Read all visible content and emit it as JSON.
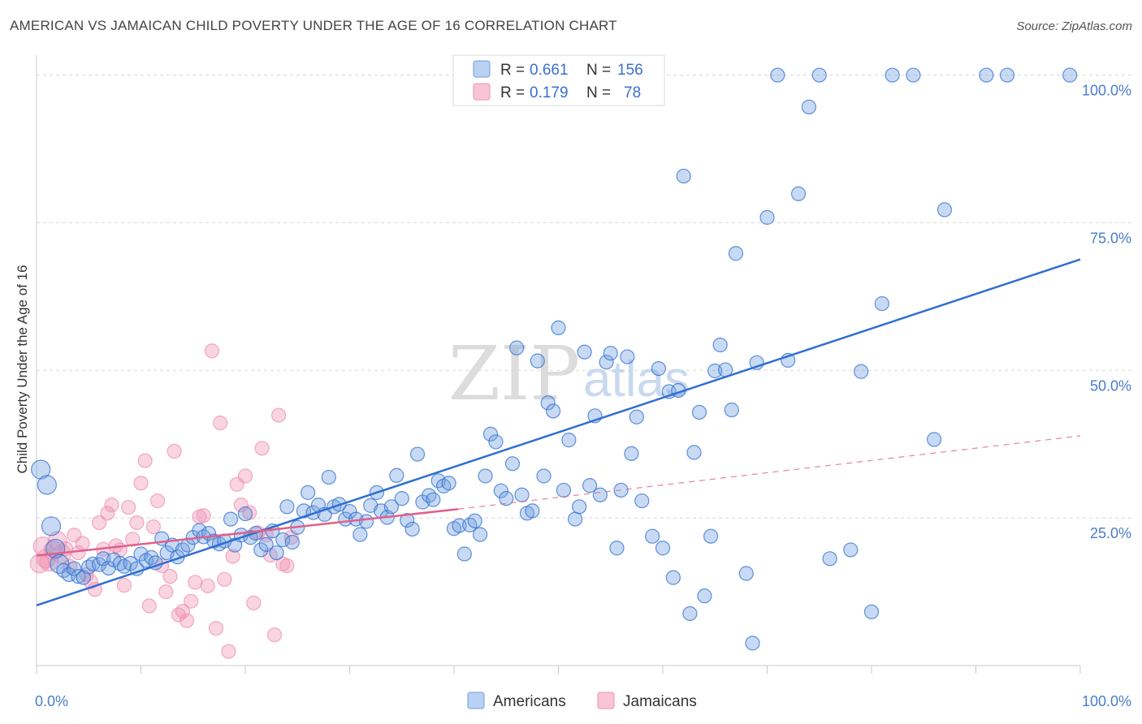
{
  "title": "AMERICAN VS JAMAICAN CHILD POVERTY UNDER THE AGE OF 16 CORRELATION CHART",
  "source": "Source: ZipAtlas.com",
  "watermark": {
    "zip": "ZIP",
    "atlas": "atlas"
  },
  "colors": {
    "americans": "#6f9fe0",
    "americans_line": "#2f6fd0",
    "jamaicans": "#f08fb0",
    "jamaicans_line": "#e0608a",
    "grid": "#d8d8d8",
    "tick_text": "#4a7cc9"
  },
  "chart_data": {
    "type": "scatter",
    "title": "AMERICAN VS JAMAICAN CHILD POVERTY UNDER THE AGE OF 16 CORRELATION CHART",
    "xlabel": "",
    "ylabel": "Child Poverty Under the Age of 16",
    "xlim": [
      0,
      100
    ],
    "ylim": [
      0,
      102
    ],
    "x_tick_labels": [
      "0.0%",
      "100.0%"
    ],
    "y_ticks": [
      25,
      50,
      75,
      100
    ],
    "y_tick_labels": [
      "25.0%",
      "50.0%",
      "75.0%",
      "100.0%"
    ],
    "grid": true,
    "legend_position": "top-center",
    "legend": [
      {
        "name": "Americans",
        "r_label": "R =",
        "r": "0.661",
        "n_label": "N =",
        "n": "156"
      },
      {
        "name": "Jamaicans",
        "r_label": "R =",
        "r": "0.179",
        "n_label": "N =",
        "n": "78"
      }
    ],
    "series": [
      {
        "name": "Americans",
        "trend": {
          "x0": 0,
          "y0": 10.2,
          "x1": 100,
          "y1": 68.8
        },
        "points": [
          [
            0.4,
            33.2
          ],
          [
            1,
            30.6
          ],
          [
            1.4,
            23.6
          ],
          [
            1.8,
            19.8
          ],
          [
            2.2,
            17.2
          ],
          [
            2.6,
            16.1
          ],
          [
            3.1,
            15.4
          ],
          [
            3.6,
            16.4
          ],
          [
            4,
            15.1
          ],
          [
            4.5,
            14.9
          ],
          [
            5,
            16.7
          ],
          [
            5.4,
            17.2
          ],
          [
            6,
            17.1
          ],
          [
            6.4,
            18.1
          ],
          [
            6.9,
            16.5
          ],
          [
            7.4,
            17.9
          ],
          [
            8,
            17.3
          ],
          [
            8.4,
            16.8
          ],
          [
            9,
            17.3
          ],
          [
            9.6,
            16.4
          ],
          [
            10,
            18.9
          ],
          [
            10.5,
            17.8
          ],
          [
            11,
            18.3
          ],
          [
            11.4,
            17.4
          ],
          [
            12,
            21.5
          ],
          [
            12.5,
            19.1
          ],
          [
            13,
            20.4
          ],
          [
            13.5,
            18.4
          ],
          [
            14,
            19.6
          ],
          [
            14.5,
            20.4
          ],
          [
            15,
            21.7
          ],
          [
            15.6,
            22.9
          ],
          [
            16,
            21.8
          ],
          [
            16.5,
            22.4
          ],
          [
            17,
            21.1
          ],
          [
            17.5,
            20.6
          ],
          [
            18,
            21.1
          ],
          [
            18.6,
            24.8
          ],
          [
            19,
            20.4
          ],
          [
            19.6,
            22.1
          ],
          [
            20,
            25.7
          ],
          [
            20.5,
            21.7
          ],
          [
            21,
            22.4
          ],
          [
            21.5,
            19.6
          ],
          [
            22,
            20.5
          ],
          [
            22.6,
            22.8
          ],
          [
            23,
            19.1
          ],
          [
            23.6,
            21.3
          ],
          [
            24,
            26.9
          ],
          [
            24.5,
            20.9
          ],
          [
            25,
            23.4
          ],
          [
            25.6,
            26.2
          ],
          [
            26,
            29.3
          ],
          [
            26.5,
            25.9
          ],
          [
            27,
            27.2
          ],
          [
            27.6,
            25.6
          ],
          [
            28,
            31.9
          ],
          [
            28.5,
            26.9
          ],
          [
            29,
            27.3
          ],
          [
            29.6,
            24.8
          ],
          [
            30,
            26.1
          ],
          [
            30.6,
            24.8
          ],
          [
            31,
            22.2
          ],
          [
            31.6,
            24.4
          ],
          [
            32,
            27.1
          ],
          [
            32.6,
            29.3
          ],
          [
            33,
            26.2
          ],
          [
            33.6,
            25.1
          ],
          [
            34,
            26.9
          ],
          [
            34.5,
            32.2
          ],
          [
            35,
            28.3
          ],
          [
            35.5,
            24.6
          ],
          [
            36,
            23.1
          ],
          [
            36.5,
            35.8
          ],
          [
            37,
            27.7
          ],
          [
            37.6,
            28.8
          ],
          [
            38,
            28.1
          ],
          [
            38.5,
            31.3
          ],
          [
            39,
            30.4
          ],
          [
            39.5,
            30.9
          ],
          [
            40,
            23.2
          ],
          [
            40.5,
            23.7
          ],
          [
            41,
            18.9
          ],
          [
            41.5,
            23.8
          ],
          [
            42,
            24.5
          ],
          [
            42.5,
            22.2
          ],
          [
            43,
            32.1
          ],
          [
            43.5,
            39.2
          ],
          [
            44,
            37.9
          ],
          [
            44.5,
            29.6
          ],
          [
            45,
            28.3
          ],
          [
            45.6,
            34.2
          ],
          [
            46,
            53.8
          ],
          [
            46.5,
            28.9
          ],
          [
            47,
            25.8
          ],
          [
            47.5,
            26.2
          ],
          [
            48,
            51.6
          ],
          [
            48.6,
            32.1
          ],
          [
            49,
            44.5
          ],
          [
            49.5,
            43.1
          ],
          [
            50,
            57.2
          ],
          [
            50.5,
            29.7
          ],
          [
            51,
            38.2
          ],
          [
            51.6,
            24.8
          ],
          [
            52,
            26.9
          ],
          [
            52.5,
            53.1
          ],
          [
            53,
            30.5
          ],
          [
            53.5,
            42.3
          ],
          [
            54,
            28.9
          ],
          [
            54.6,
            51.4
          ],
          [
            55,
            52.9
          ],
          [
            55.6,
            19.9
          ],
          [
            56,
            29.7
          ],
          [
            56.6,
            52.3
          ],
          [
            57,
            35.9
          ],
          [
            57.5,
            42.1
          ],
          [
            58,
            27.9
          ],
          [
            59,
            21.9
          ],
          [
            59.6,
            50.3
          ],
          [
            60,
            19.9
          ],
          [
            60.6,
            46.4
          ],
          [
            61,
            14.9
          ],
          [
            61.5,
            46.6
          ],
          [
            62,
            82.9
          ],
          [
            62.6,
            8.8
          ],
          [
            63,
            36.1
          ],
          [
            63.5,
            42.9
          ],
          [
            64,
            11.8
          ],
          [
            64.6,
            21.9
          ],
          [
            65,
            49.9
          ],
          [
            65.5,
            54.3
          ],
          [
            66,
            50.1
          ],
          [
            66.6,
            43.3
          ],
          [
            67,
            69.8
          ],
          [
            68,
            15.6
          ],
          [
            68.6,
            3.8
          ],
          [
            69,
            51.3
          ],
          [
            70,
            75.9
          ],
          [
            71,
            100
          ],
          [
            72,
            51.7
          ],
          [
            73,
            79.9
          ],
          [
            74,
            94.6
          ],
          [
            75,
            100
          ],
          [
            76,
            18.1
          ],
          [
            78,
            19.6
          ],
          [
            79,
            49.8
          ],
          [
            80,
            9.1
          ],
          [
            81,
            61.3
          ],
          [
            82,
            100
          ],
          [
            84,
            100
          ],
          [
            86,
            38.3
          ],
          [
            87,
            77.2
          ],
          [
            91,
            100
          ],
          [
            93,
            100
          ],
          [
            99,
            100
          ]
        ]
      },
      {
        "name": "Jamaicans",
        "trend": {
          "x0": 0,
          "y0": 18.6,
          "x1": 40.4,
          "y1": 26.5
        },
        "trend_extension": {
          "x0": 40.4,
          "y0": 26.5,
          "x1": 100,
          "y1": 38.9
        },
        "points": [
          [
            0.3,
            17.3
          ],
          [
            0.6,
            20.2
          ],
          [
            0.9,
            18.1
          ],
          [
            1.2,
            17.6
          ],
          [
            1.6,
            19.5
          ],
          [
            2,
            21.1
          ],
          [
            2.4,
            18.9
          ],
          [
            2.8,
            19.8
          ],
          [
            3.2,
            16.8
          ],
          [
            3.6,
            22.1
          ],
          [
            4,
            19.1
          ],
          [
            4.4,
            20.7
          ],
          [
            4.8,
            15.4
          ],
          [
            5.2,
            14.2
          ],
          [
            5.6,
            12.9
          ],
          [
            6,
            24.2
          ],
          [
            6.4,
            19.7
          ],
          [
            6.8,
            25.8
          ],
          [
            7.2,
            27.2
          ],
          [
            7.6,
            20.3
          ],
          [
            8,
            19.6
          ],
          [
            8.4,
            13.6
          ],
          [
            8.8,
            26.8
          ],
          [
            9.2,
            21.4
          ],
          [
            9.6,
            24.2
          ],
          [
            10,
            30.9
          ],
          [
            10.4,
            34.7
          ],
          [
            10.8,
            10.1
          ],
          [
            11.2,
            23.5
          ],
          [
            11.6,
            27.9
          ],
          [
            12,
            16.9
          ],
          [
            12.4,
            12.5
          ],
          [
            12.8,
            15.1
          ],
          [
            13.2,
            36.3
          ],
          [
            13.6,
            8.6
          ],
          [
            14,
            9.2
          ],
          [
            14.4,
            7.6
          ],
          [
            14.8,
            10.9
          ],
          [
            15.2,
            14.1
          ],
          [
            15.6,
            25.2
          ],
          [
            16,
            25.4
          ],
          [
            16.4,
            13.5
          ],
          [
            16.8,
            53.3
          ],
          [
            17.2,
            6.3
          ],
          [
            17.6,
            41.1
          ],
          [
            18,
            14.6
          ],
          [
            18.4,
            2.4
          ],
          [
            18.8,
            18.5
          ],
          [
            19.2,
            30.7
          ],
          [
            19.6,
            27.2
          ],
          [
            20,
            32.1
          ],
          [
            20.4,
            25.9
          ],
          [
            20.8,
            10.6
          ],
          [
            21.2,
            22.5
          ],
          [
            21.6,
            36.8
          ],
          [
            22,
            22.1
          ],
          [
            22.4,
            18.7
          ],
          [
            22.8,
            5.2
          ],
          [
            23.2,
            42.4
          ],
          [
            23.6,
            17.2
          ],
          [
            24,
            16.9
          ],
          [
            24.4,
            21.7
          ]
        ]
      }
    ]
  }
}
